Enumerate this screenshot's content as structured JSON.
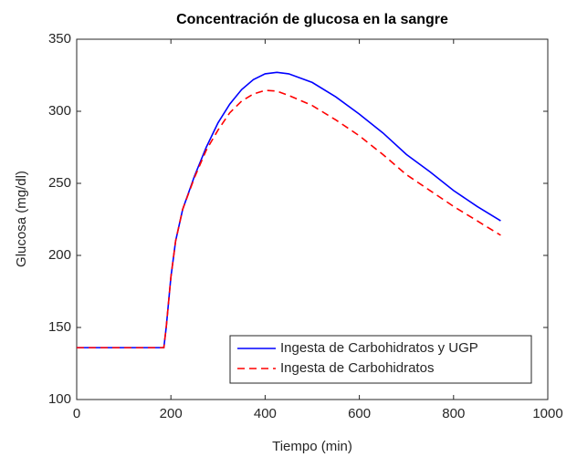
{
  "chart_data": {
    "type": "line",
    "title": "Concentración de glucosa en la sangre",
    "xlabel": "Tiempo (min)",
    "ylabel": "Glucosa (mg/dl)",
    "x": [
      0,
      50,
      100,
      150,
      185,
      190,
      200,
      210,
      225,
      250,
      275,
      300,
      325,
      350,
      375,
      400,
      425,
      450,
      500,
      550,
      600,
      650,
      700,
      750,
      800,
      850,
      900
    ],
    "series": [
      {
        "name": "Ingesta de Carbohidratos y UGP",
        "color": "#0000ff",
        "style": "solid",
        "values": [
          136,
          136,
          136,
          136,
          136,
          150,
          185,
          210,
          232,
          255,
          275,
          292,
          305,
          315,
          322,
          326,
          327,
          326,
          320,
          310,
          298,
          285,
          270,
          258,
          245,
          234,
          224
        ]
      },
      {
        "name": "Ingesta de Carbohidratos",
        "color": "#ff0000",
        "style": "dashed",
        "values": [
          136,
          136,
          136,
          136,
          136,
          150,
          185,
          210,
          232,
          254,
          273,
          287,
          299,
          307,
          312,
          314.5,
          314,
          311,
          304,
          294,
          283,
          270,
          256,
          245,
          234,
          224,
          214
        ]
      }
    ],
    "xlim": [
      0,
      1000
    ],
    "xticks": [
      0,
      200,
      400,
      600,
      800,
      1000
    ],
    "ylim": [
      100,
      350
    ],
    "yticks": [
      100,
      150,
      200,
      250,
      300,
      350
    ],
    "grid": false,
    "legend": "lower right"
  }
}
